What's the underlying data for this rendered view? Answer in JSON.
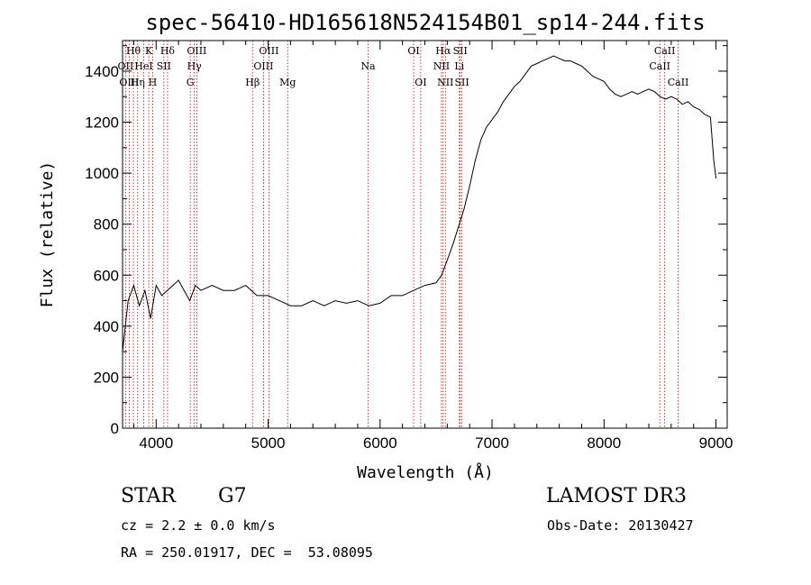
{
  "chart_data": {
    "type": "line",
    "title": "spec-56410-HD165618N524154B01_sp14-244.fits",
    "xlabel": "Wavelength (Å)",
    "ylabel": "Flux (relative)",
    "xlim": [
      3700,
      9100
    ],
    "ylim": [
      0,
      1520
    ],
    "xticks": [
      4000,
      5000,
      6000,
      7000,
      8000,
      9000
    ],
    "yticks": [
      0,
      200,
      400,
      600,
      800,
      1000,
      1200,
      1400
    ],
    "grid": false,
    "series": [
      {
        "x": [
          3700,
          3750,
          3800,
          3850,
          3900,
          3950,
          4000,
          4050,
          4100,
          4150,
          4200,
          4250,
          4300,
          4350,
          4400,
          4500,
          4600,
          4700,
          4800,
          4900,
          5000,
          5100,
          5200,
          5300,
          5400,
          5500,
          5600,
          5700,
          5800,
          5900,
          6000,
          6100,
          6200,
          6300,
          6400,
          6500,
          6550,
          6600,
          6650,
          6700,
          6750,
          6800,
          6850,
          6900,
          6950,
          7000,
          7050,
          7100,
          7150,
          7200,
          7250,
          7300,
          7350,
          7400,
          7450,
          7500,
          7550,
          7600,
          7650,
          7700,
          7750,
          7800,
          7850,
          7900,
          7950,
          8000,
          8050,
          8100,
          8150,
          8200,
          8250,
          8300,
          8350,
          8400,
          8450,
          8500,
          8550,
          8600,
          8650,
          8700,
          8750,
          8800,
          8850,
          8900,
          8950,
          8980,
          9000
        ],
        "values": [
          300,
          500,
          560,
          480,
          540,
          430,
          560,
          520,
          540,
          560,
          580,
          540,
          500,
          560,
          540,
          560,
          540,
          540,
          560,
          520,
          520,
          500,
          480,
          480,
          500,
          480,
          500,
          490,
          500,
          480,
          490,
          520,
          520,
          540,
          560,
          570,
          600,
          660,
          720,
          790,
          860,
          950,
          1050,
          1130,
          1180,
          1210,
          1240,
          1280,
          1310,
          1340,
          1360,
          1390,
          1420,
          1430,
          1440,
          1450,
          1460,
          1450,
          1440,
          1440,
          1430,
          1420,
          1400,
          1380,
          1370,
          1360,
          1330,
          1310,
          1300,
          1310,
          1320,
          1310,
          1320,
          1330,
          1320,
          1300,
          1290,
          1300,
          1290,
          1270,
          1280,
          1260,
          1250,
          1230,
          1220,
          1050,
          980
        ]
      }
    ],
    "lines": [
      {
        "label": "Hθ",
        "x": 3797,
        "row": 0
      },
      {
        "label": "K",
        "x": 3934,
        "row": 0
      },
      {
        "label": "Hδ",
        "x": 4102,
        "row": 0
      },
      {
        "label": "OIII",
        "x": 4363,
        "row": 0
      },
      {
        "label": "OIII",
        "x": 5007,
        "row": 0
      },
      {
        "label": "OI",
        "x": 6300,
        "row": 0
      },
      {
        "label": "Hα",
        "x": 6563,
        "row": 0
      },
      {
        "label": "SII",
        "x": 6716,
        "row": 0
      },
      {
        "label": "CaII",
        "x": 8542,
        "row": 0
      },
      {
        "label": "OII",
        "x": 3727,
        "row": 1
      },
      {
        "label": "HeI",
        "x": 3889,
        "row": 1
      },
      {
        "label": "SII",
        "x": 4069,
        "row": 1
      },
      {
        "label": "Hγ",
        "x": 4341,
        "row": 1
      },
      {
        "label": "OIII",
        "x": 4959,
        "row": 1
      },
      {
        "label": "Na",
        "x": 5893,
        "row": 1
      },
      {
        "label": "NII",
        "x": 6548,
        "row": 1
      },
      {
        "label": "Li",
        "x": 6708,
        "row": 1
      },
      {
        "label": "CaII",
        "x": 8498,
        "row": 1
      },
      {
        "label": "OIII",
        "x": 3760,
        "row": 2
      },
      {
        "label": "Hη",
        "x": 3835,
        "row": 2
      },
      {
        "label": "H",
        "x": 3969,
        "row": 2
      },
      {
        "label": "G",
        "x": 4305,
        "row": 2
      },
      {
        "label": "Hβ",
        "x": 4861,
        "row": 2
      },
      {
        "label": "Mg",
        "x": 5175,
        "row": 2
      },
      {
        "label": "OI",
        "x": 6363,
        "row": 2
      },
      {
        "label": "NII",
        "x": 6583,
        "row": 2
      },
      {
        "label": "SII",
        "x": 6731,
        "row": 2
      },
      {
        "label": "CaII",
        "x": 8662,
        "row": 2
      }
    ]
  },
  "info": {
    "object_class": "STAR",
    "subclass": "G7",
    "survey": "LAMOST DR3",
    "cz": "cz = 2.2 ± 0.0 km/s",
    "obs_date": "Obs-Date: 20130427",
    "radec": "RA = 250.01917, DEC =  53.08095"
  }
}
